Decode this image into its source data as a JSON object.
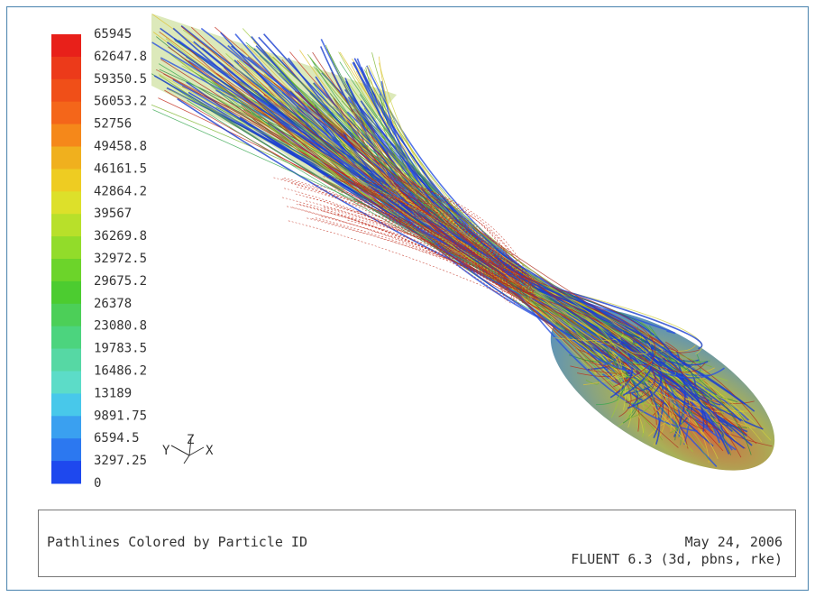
{
  "colorbar": {
    "labels": [
      "65945",
      "62647.8",
      "59350.5",
      "56053.2",
      "52756",
      "49458.8",
      "46161.5",
      "42864.2",
      "39567",
      "36269.8",
      "32972.5",
      "29675.2",
      "26378",
      "23080.8",
      "19783.5",
      "16486.2",
      "13189",
      "9891.75",
      "6594.5",
      "3297.25",
      "0"
    ]
  },
  "axes_triad": {
    "y": "Y",
    "z": "Z",
    "x": "X"
  },
  "caption": {
    "title": "Pathlines Colored by Particle ID",
    "date": "May 24, 2006",
    "solver": "FLUENT 6.3 (3d, pbns, rke)"
  }
}
